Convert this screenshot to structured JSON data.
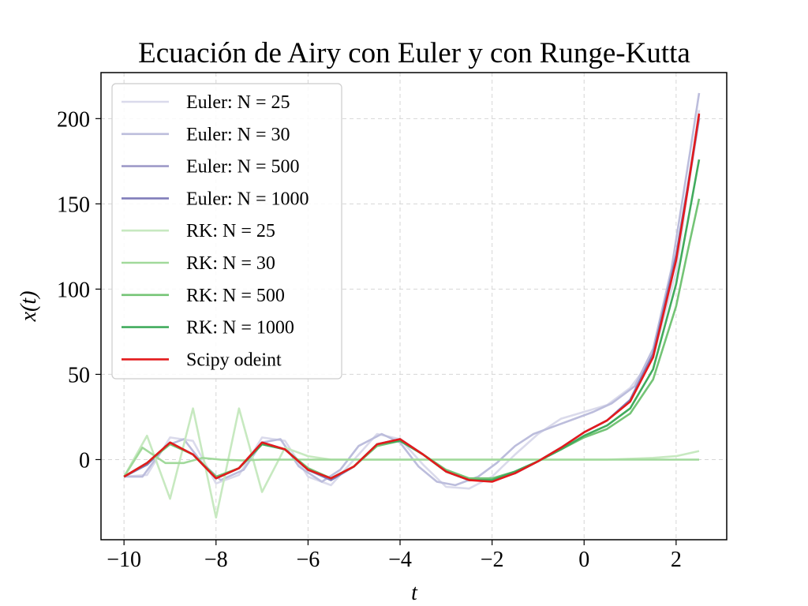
{
  "chart_data": {
    "type": "line",
    "title": "Ecuación de Airy con Euler y con Runge-Kutta",
    "xlabel": "t",
    "ylabel": "x(t)",
    "xlim": [
      -10.5,
      3.1
    ],
    "ylim": [
      -47,
      227
    ],
    "xticks": [
      -10,
      -8,
      -6,
      -4,
      -2,
      0,
      2
    ],
    "xtick_labels": [
      "−10",
      "−8",
      "−6",
      "−4",
      "−2",
      "0",
      "2"
    ],
    "yticks": [
      0,
      50,
      100,
      150,
      200
    ],
    "ytick_labels": [
      "0",
      "50",
      "100",
      "150",
      "200"
    ],
    "grid": true,
    "legend_position": "upper-left",
    "series": [
      {
        "name": "Euler: N = 25",
        "color": "#dadaeb",
        "x": [
          -10,
          -9.5,
          -9,
          -8.5,
          -8,
          -7.5,
          -7,
          -6.5,
          -6,
          -5.5,
          -5,
          -4.5,
          -4,
          -3.5,
          -3,
          -2.5,
          -2,
          -1.5,
          -1,
          -0.5,
          0,
          0.5,
          1,
          1.5,
          2,
          2.5
        ],
        "y": [
          -10,
          -9,
          13,
          11,
          -14,
          -9,
          13,
          11,
          -10,
          -15,
          0,
          15,
          12,
          -3,
          -16,
          -17,
          -10,
          3,
          15,
          24,
          28,
          32,
          42,
          60,
          110,
          205
        ]
      },
      {
        "name": "Euler: N = 30",
        "color": "#bcbddc",
        "x": [
          -10,
          -9.6,
          -9.1,
          -8.7,
          -8.3,
          -7.9,
          -7.4,
          -7,
          -6.6,
          -6.2,
          -5.7,
          -5.3,
          -4.9,
          -4.4,
          -4,
          -3.6,
          -3.2,
          -2.8,
          -2.3,
          -1.9,
          -1.5,
          -1.1,
          -0.6,
          -0.2,
          0.2,
          0.6,
          1.1,
          1.5,
          1.9,
          2.3,
          2.5
        ],
        "y": [
          -10,
          -10,
          8,
          12,
          -2,
          -12,
          -6,
          10,
          12,
          -4,
          -13,
          -6,
          8,
          15,
          10,
          -4,
          -13,
          -15,
          -10,
          -2,
          8,
          15,
          20,
          24,
          28,
          33,
          43,
          65,
          112,
          180,
          215
        ]
      },
      {
        "name": "Euler: N = 500",
        "color": "#9e9ac8",
        "x": [
          -10,
          -9.5,
          -9,
          -8.5,
          -8,
          -7.5,
          -7,
          -6.5,
          -6,
          -5.5,
          -5,
          -4.5,
          -4,
          -3.5,
          -3,
          -2.5,
          -2,
          -1.5,
          -1,
          -0.5,
          0,
          0.5,
          1,
          1.5,
          2,
          2.25,
          2.5
        ],
        "y": [
          -10,
          -3,
          10,
          3,
          -11,
          -5,
          10,
          6,
          -6,
          -12,
          -4,
          9,
          12,
          3,
          -7,
          -12,
          -12,
          -8,
          -1,
          7,
          16,
          23,
          35,
          62,
          118,
          158,
          200
        ]
      },
      {
        "name": "Euler: N = 1000",
        "color": "#807dba",
        "x": [
          -10,
          -9.5,
          -9,
          -8.5,
          -8,
          -7.5,
          -7,
          -6.5,
          -6,
          -5.5,
          -5,
          -4.5,
          -4,
          -3.5,
          -3,
          -2.5,
          -2,
          -1.5,
          -1,
          -0.5,
          0,
          0.5,
          1,
          1.5,
          2,
          2.25,
          2.5
        ],
        "y": [
          -10,
          -3,
          10,
          3,
          -11,
          -5,
          10,
          6,
          -6,
          -12,
          -4,
          9,
          12,
          3,
          -7,
          -12,
          -12,
          -8,
          -1,
          7,
          16,
          23,
          35,
          62,
          120,
          160,
          202
        ]
      },
      {
        "name": "RK: N = 25",
        "color": "#c7e9c0",
        "x": [
          -10,
          -9.5,
          -9,
          -8.5,
          -8,
          -7.5,
          -7,
          -6.5,
          -6,
          -5.5,
          -5,
          -4.5,
          -4,
          -3.5,
          -3,
          -2.5,
          -2,
          -1.5,
          -1,
          -0.5,
          0,
          0.5,
          1,
          1.5,
          2,
          2.5
        ],
        "y": [
          -10,
          14,
          -23,
          30,
          -34,
          30,
          -19,
          7,
          2,
          0,
          0,
          0,
          0,
          0,
          0,
          0,
          0,
          0,
          0,
          0,
          0,
          0,
          0.5,
          1,
          2,
          5
        ]
      },
      {
        "name": "RK: N = 30",
        "color": "#a1d99b",
        "x": [
          -10,
          -9.6,
          -9.1,
          -8.7,
          -8.3,
          -7.9,
          -7.4,
          -7,
          -6.6,
          -6.2,
          -5.7,
          -5.3,
          -4.9,
          -4.4,
          -4,
          -3.6,
          -3.2,
          -2.8,
          -2.3,
          -1.9,
          -1.5,
          -1.1,
          -0.6,
          -0.2,
          0.2,
          0.6,
          1.1,
          1.5,
          1.9,
          2.3,
          2.5
        ],
        "y": [
          -10,
          7,
          -2,
          -2,
          1,
          0,
          -0.5,
          0,
          0,
          0,
          0,
          0,
          0,
          0,
          0,
          0,
          0,
          0,
          0,
          0,
          0,
          0,
          0,
          0,
          0,
          0,
          0,
          0,
          0,
          0,
          0
        ]
      },
      {
        "name": "RK: N = 500",
        "color": "#74c476",
        "x": [
          -10,
          -9.5,
          -9,
          -8.5,
          -8,
          -7.5,
          -7,
          -6.5,
          -6,
          -5.5,
          -5,
          -4.5,
          -4,
          -3.5,
          -3,
          -2.5,
          -2,
          -1.5,
          -1,
          -0.5,
          0,
          0.5,
          1,
          1.5,
          2,
          2.25,
          2.5
        ],
        "y": [
          -10,
          -2,
          9,
          3,
          -10,
          -5,
          9,
          6,
          -5,
          -11,
          -4,
          8,
          11,
          3,
          -6,
          -11,
          -11,
          -7,
          -1,
          6,
          13,
          18,
          27,
          47,
          90,
          122,
          153
        ]
      },
      {
        "name": "RK: N = 1000",
        "color": "#41ab5d",
        "x": [
          -10,
          -9.5,
          -9,
          -8.5,
          -8,
          -7.5,
          -7,
          -6.5,
          -6,
          -5.5,
          -5,
          -4.5,
          -4,
          -3.5,
          -3,
          -2.5,
          -2,
          -1.5,
          -1,
          -0.5,
          0,
          0.5,
          1,
          1.5,
          2,
          2.25,
          2.5
        ],
        "y": [
          -10,
          -2,
          10,
          3,
          -11,
          -5,
          9,
          6,
          -6,
          -11,
          -4,
          9,
          11,
          3,
          -7,
          -12,
          -12,
          -7,
          -1,
          6,
          14,
          20,
          30,
          53,
          103,
          139,
          176
        ]
      },
      {
        "name": "Scipy odeint",
        "color": "#e31a1c",
        "x": [
          -10,
          -9.5,
          -9,
          -8.5,
          -8,
          -7.5,
          -7,
          -6.5,
          -6,
          -5.5,
          -5,
          -4.5,
          -4,
          -3.5,
          -3,
          -2.5,
          -2,
          -1.5,
          -1,
          -0.5,
          0,
          0.5,
          1,
          1.5,
          2,
          2.25,
          2.5
        ],
        "y": [
          -10,
          -2,
          10,
          3,
          -11,
          -5,
          10,
          6,
          -6,
          -11,
          -4,
          9,
          12,
          3,
          -7,
          -12,
          -13,
          -8,
          -1,
          7,
          16,
          23,
          34,
          60,
          117,
          158,
          203
        ]
      }
    ]
  }
}
